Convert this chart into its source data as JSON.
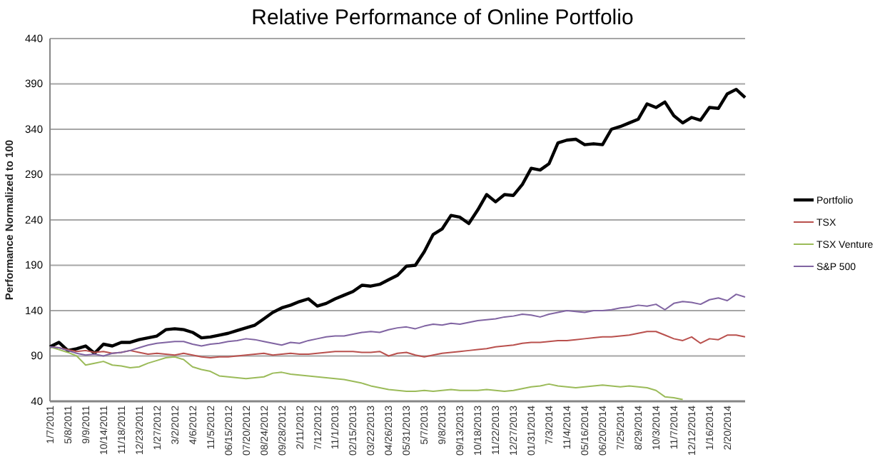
{
  "chart_data": {
    "type": "line",
    "title": "Relative Performance of Online Portfolio",
    "ylabel": "Performance Normalized to 100",
    "categories": [
      "1/7/2011",
      null,
      "5/8/2011",
      null,
      "9/9/2011",
      null,
      "10/14/2011",
      null,
      "11/18/2011",
      null,
      "12/23/2011",
      null,
      "1/27/2012",
      null,
      "3/2/2012",
      null,
      "4/6/2012",
      null,
      "11/5/2012",
      null,
      "06/15/2012",
      null,
      "07/20/2012",
      null,
      "08/24/2012",
      null,
      "09/28/2012",
      null,
      "2/11/2012",
      null,
      "7/12/2012",
      null,
      "11/1/2013",
      null,
      "02/15/2013",
      null,
      "03/22/2013",
      null,
      "04/26/2013",
      null,
      "05/31/2013",
      null,
      "5/7/2013",
      null,
      "9/8/2013",
      null,
      "09/13/2013",
      null,
      "10/18/2013",
      null,
      "11/22/2013",
      null,
      "12/27/2013",
      null,
      "01/31/2014",
      null,
      "7/3/2014",
      null,
      "11/4/2014",
      null,
      "05/16/2014",
      null,
      "06/20/2014",
      null,
      "7/25/2014",
      null,
      "8/29/2014",
      null,
      "10/3/2014",
      null,
      "11/7/2014",
      null,
      "12/12/2014",
      null,
      "1/16/2014",
      null,
      "2/20/2014",
      null,
      null
    ],
    "series": [
      {
        "name": "Portfolio",
        "color": "#000000",
        "values": [
          100,
          105,
          96,
          98,
          101,
          93,
          103,
          101,
          105,
          105,
          108,
          110,
          112,
          119,
          120,
          119,
          116,
          110,
          111,
          113,
          115,
          118,
          121,
          124,
          131,
          138,
          143,
          146,
          150,
          153,
          145,
          148,
          153,
          157,
          161,
          168,
          167,
          169,
          174,
          179,
          189,
          190,
          205,
          224,
          230,
          245,
          243,
          236,
          251,
          268,
          260,
          268,
          267,
          279,
          297,
          295,
          302,
          325,
          328,
          329,
          323,
          324,
          323,
          340,
          343,
          347,
          351,
          368,
          364,
          370,
          355,
          347,
          353,
          350,
          364,
          363,
          379,
          384,
          375
        ]
      },
      {
        "name": "TSX",
        "color": "#b9504d",
        "values": [
          100,
          99,
          97,
          95,
          96,
          94,
          95,
          93,
          94,
          96,
          94,
          92,
          93,
          92,
          91,
          93,
          91,
          89,
          88,
          89,
          89,
          90,
          91,
          92,
          93,
          91,
          92,
          93,
          92,
          92,
          93,
          94,
          95,
          95,
          95,
          94,
          94,
          95,
          90,
          93,
          94,
          91,
          89,
          91,
          93,
          94,
          95,
          96,
          97,
          98,
          100,
          101,
          102,
          104,
          105,
          105,
          106,
          107,
          107,
          108,
          109,
          110,
          111,
          111,
          112,
          113,
          115,
          117,
          117,
          113,
          109,
          107,
          111,
          104,
          109,
          108,
          113,
          113,
          111
        ]
      },
      {
        "name": "TSX Venture",
        "color": "#9bbb59",
        "values": [
          100,
          97,
          94,
          90,
          80,
          82,
          84,
          80,
          79,
          77,
          78,
          82,
          85,
          88,
          89,
          86,
          78,
          75,
          73,
          68,
          67,
          66,
          65,
          66,
          67,
          71,
          72,
          70,
          69,
          68,
          67,
          66,
          65,
          64,
          62,
          60,
          57,
          55,
          53,
          52,
          51,
          51,
          52,
          51,
          52,
          53,
          52,
          52,
          52,
          53,
          52,
          51,
          52,
          54,
          56,
          57,
          59,
          57,
          56,
          55,
          56,
          57,
          58,
          57,
          56,
          57,
          56,
          55,
          52,
          45,
          44,
          42,
          null,
          null,
          null,
          null,
          null,
          null,
          null
        ]
      },
      {
        "name": "S&P 500",
        "color": "#8064a2",
        "values": [
          100,
          99,
          96,
          93,
          91,
          92,
          90,
          93,
          94,
          96,
          99,
          102,
          104,
          105,
          106,
          106,
          103,
          101,
          103,
          104,
          106,
          107,
          109,
          108,
          106,
          104,
          102,
          105,
          104,
          107,
          109,
          111,
          112,
          112,
          114,
          116,
          117,
          116,
          119,
          121,
          122,
          120,
          123,
          125,
          124,
          126,
          125,
          127,
          129,
          130,
          131,
          133,
          134,
          136,
          135,
          133,
          136,
          138,
          140,
          139,
          138,
          140,
          140,
          141,
          143,
          144,
          146,
          145,
          147,
          141,
          148,
          150,
          149,
          147,
          152,
          154,
          151,
          158,
          155
        ]
      }
    ],
    "ylim": [
      40,
      440
    ],
    "yticks": [
      40,
      90,
      140,
      190,
      240,
      290,
      340,
      390,
      440
    ],
    "grid": "y",
    "legend": "right",
    "marker": "none",
    "line_style": "solid"
  }
}
